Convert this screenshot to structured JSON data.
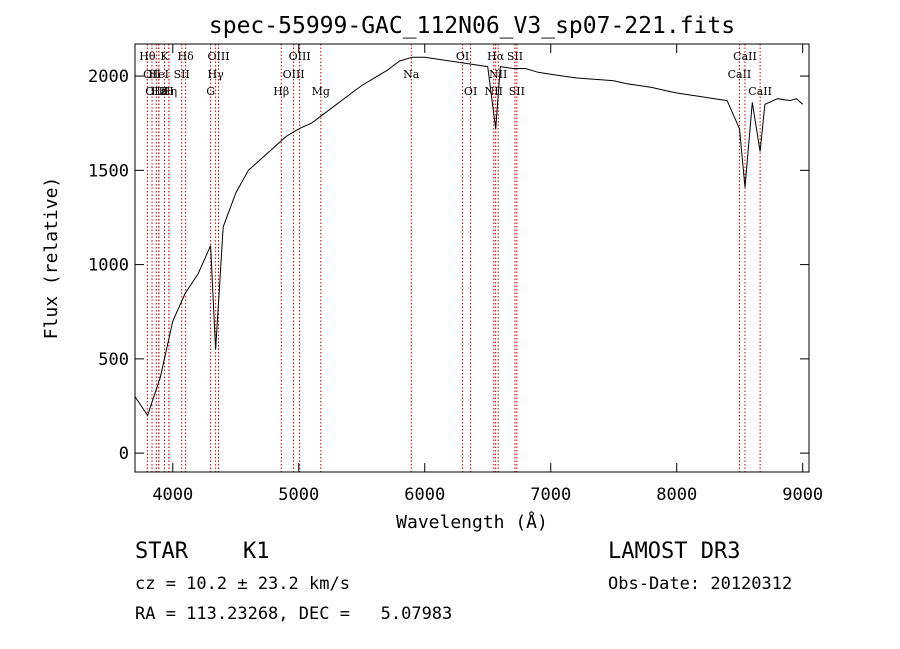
{
  "chart_data": {
    "type": "line",
    "title": "spec-55999-GAC_112N06_V3_sp07-221.fits",
    "xlabel": "Wavelength (Å)",
    "ylabel": "Flux (relative)",
    "xlim": [
      3700,
      9050
    ],
    "ylim": [
      -100,
      2170
    ],
    "xticks": [
      4000,
      5000,
      6000,
      7000,
      8000,
      9000
    ],
    "yticks": [
      0,
      500,
      1000,
      1500,
      2000
    ],
    "xtick_labels": [
      "4000",
      "5000",
      "6000",
      "7000",
      "8000",
      "9000"
    ],
    "ytick_labels": [
      "0",
      "500",
      "1000",
      "1500",
      "2000"
    ],
    "series": [
      {
        "name": "spectrum",
        "x": [
          3700,
          3800,
          3900,
          4000,
          4100,
          4200,
          4300,
          4340,
          4400,
          4500,
          4600,
          4700,
          4800,
          4900,
          5000,
          5100,
          5200,
          5300,
          5400,
          5500,
          5600,
          5700,
          5800,
          5900,
          6000,
          6100,
          6200,
          6300,
          6400,
          6500,
          6563,
          6600,
          6700,
          6800,
          6900,
          7000,
          7100,
          7200,
          7300,
          7400,
          7500,
          7600,
          7700,
          7800,
          7900,
          8000,
          8100,
          8200,
          8300,
          8400,
          8498,
          8542,
          8600,
          8662,
          8700,
          8800,
          8900,
          8950,
          9000
        ],
        "y": [
          300,
          200,
          400,
          700,
          850,
          950,
          1100,
          550,
          1200,
          1380,
          1500,
          1560,
          1620,
          1680,
          1720,
          1750,
          1800,
          1850,
          1900,
          1950,
          1990,
          2030,
          2080,
          2100,
          2100,
          2090,
          2080,
          2070,
          2060,
          2050,
          1720,
          2050,
          2040,
          2040,
          2020,
          2010,
          2000,
          1990,
          1985,
          1980,
          1975,
          1960,
          1950,
          1940,
          1925,
          1910,
          1900,
          1890,
          1880,
          1870,
          1720,
          1410,
          1860,
          1600,
          1850,
          1880,
          1870,
          1880,
          1850
        ]
      }
    ],
    "line_markers": [
      {
        "x": 3798,
        "label": "Hθ",
        "row": 0
      },
      {
        "x": 3835,
        "label": "OII",
        "row": 1
      },
      {
        "x": 3869,
        "label": "OIII",
        "row": 2
      },
      {
        "x": 3889,
        "label": "Hε",
        "row": 2
      },
      {
        "x": 3889,
        "label": "HeI",
        "row": 1
      },
      {
        "x": 3934,
        "label": "K",
        "row": 0
      },
      {
        "x": 3970,
        "label": "Hη",
        "row": 2
      },
      {
        "x": 3969,
        "label": "H",
        "row": 2
      },
      {
        "x": 4071,
        "label": "SII",
        "row": 1
      },
      {
        "x": 4102,
        "label": "Hδ",
        "row": 0
      },
      {
        "x": 4300,
        "label": "G",
        "row": 2
      },
      {
        "x": 4340,
        "label": "Hγ",
        "row": 1
      },
      {
        "x": 4363,
        "label": "OIII",
        "row": 0
      },
      {
        "x": 4861,
        "label": "Hβ",
        "row": 2
      },
      {
        "x": 4959,
        "label": "OIII",
        "row": 1
      },
      {
        "x": 5007,
        "label": "OIII",
        "row": 0
      },
      {
        "x": 5175,
        "label": "Mg",
        "row": 2
      },
      {
        "x": 5893,
        "label": "Na",
        "row": 1
      },
      {
        "x": 6300,
        "label": "OI",
        "row": 0
      },
      {
        "x": 6364,
        "label": "OI",
        "row": 2
      },
      {
        "x": 6548,
        "label": "NII",
        "row": 2
      },
      {
        "x": 6563,
        "label": "Hα",
        "row": 0
      },
      {
        "x": 6583,
        "label": "NII",
        "row": 1
      },
      {
        "x": 6716,
        "label": "SII",
        "row": 0
      },
      {
        "x": 6731,
        "label": "SII",
        "row": 2
      },
      {
        "x": 8498,
        "label": "CaII",
        "row": 1
      },
      {
        "x": 8542,
        "label": "CaII",
        "row": 0
      },
      {
        "x": 8662,
        "label": "CaII",
        "row": 2
      }
    ]
  },
  "info": {
    "class_label": "STAR",
    "subclass_label": "K1",
    "survey_label": "LAMOST DR3",
    "cz_text": "cz = 10.2 ± 23.2 km/s",
    "obs_date_text": "Obs-Date: 20120312",
    "radec_text": "RA = 113.23268, DEC =   5.07983"
  },
  "colors": {
    "spectrum": "#000000",
    "line_marker": "#c00000",
    "axis": "#000000",
    "background": "#ffffff"
  }
}
